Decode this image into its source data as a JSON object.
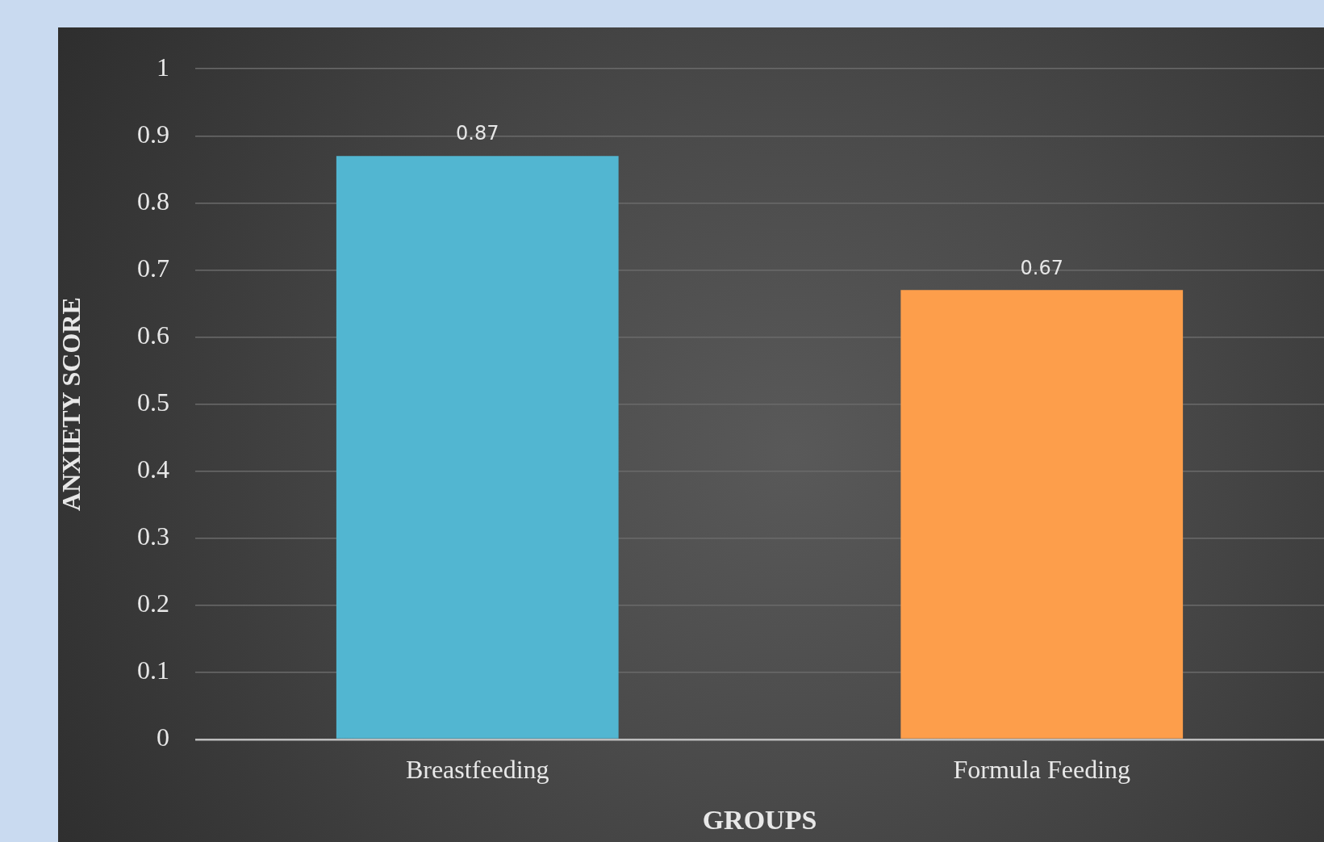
{
  "chart_data": {
    "type": "bar",
    "xlabel": "GROUPS",
    "ylabel": "ANXIETY SCORE",
    "categories": [
      "Breastfeeding",
      "Formula Feeding"
    ],
    "values": [
      0.87,
      0.67
    ],
    "colors": [
      "#52b6d1",
      "#fd9e4b"
    ],
    "ylim": [
      0,
      1
    ],
    "yticks": [
      0,
      0.1,
      0.2,
      0.3,
      0.4,
      0.5,
      0.6,
      0.7,
      0.8,
      0.9,
      1
    ],
    "grid": "y",
    "legend": false,
    "data_labels": true
  }
}
